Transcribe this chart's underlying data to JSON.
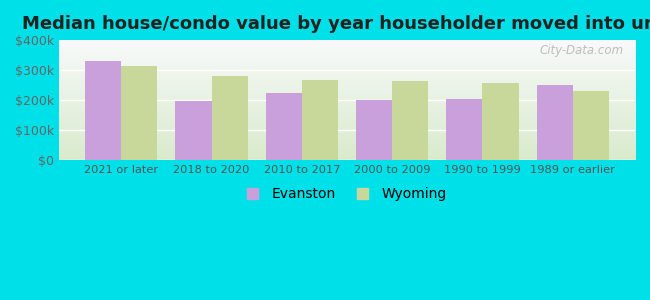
{
  "title": "Median house/condo value by year householder moved into unit",
  "categories": [
    "2021 or later",
    "2018 to 2020",
    "2010 to 2017",
    "2000 to 2009",
    "1990 to 1999",
    "1989 or earlier"
  ],
  "evanston_values": [
    330000,
    197000,
    225000,
    200000,
    205000,
    252000
  ],
  "wyoming_values": [
    315000,
    280000,
    268000,
    265000,
    258000,
    232000
  ],
  "evanston_color": "#c9a0dc",
  "wyoming_color": "#c8d89a",
  "background_outer": "#00e0e8",
  "ylim": [
    0,
    400000
  ],
  "yticks": [
    0,
    100000,
    200000,
    300000,
    400000
  ],
  "ytick_labels": [
    "$0",
    "$100k",
    "$200k",
    "$300k",
    "$400k"
  ],
  "bar_width": 0.4,
  "watermark": "City-Data.com",
  "legend_evanston": "Evanston",
  "legend_wyoming": "Wyoming",
  "title_fontsize": 13
}
